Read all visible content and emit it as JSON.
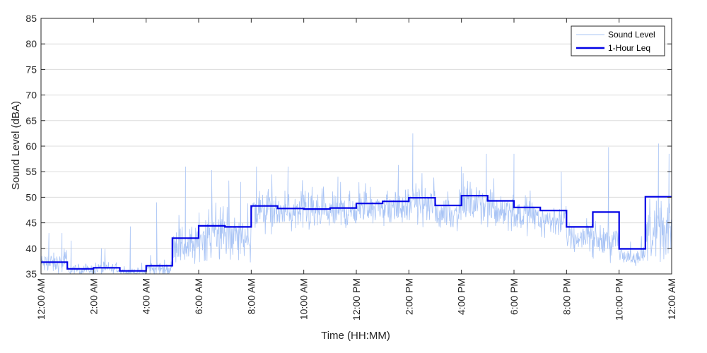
{
  "chart_data": {
    "type": "line",
    "title": "",
    "xlabel": "Time (HH:MM)",
    "ylabel": "Sound Level (dBA)",
    "ylim": [
      35,
      85
    ],
    "yticks": [
      35,
      40,
      45,
      50,
      55,
      60,
      65,
      70,
      75,
      80,
      85
    ],
    "xlim_hours": [
      0,
      24
    ],
    "xticks": [
      {
        "hour": 0,
        "label": "12:00 AM"
      },
      {
        "hour": 2,
        "label": "2:00 AM"
      },
      {
        "hour": 4,
        "label": "4:00 AM"
      },
      {
        "hour": 6,
        "label": "6:00 AM"
      },
      {
        "hour": 8,
        "label": "8:00 AM"
      },
      {
        "hour": 10,
        "label": "10:00 AM"
      },
      {
        "hour": 12,
        "label": "12:00 PM"
      },
      {
        "hour": 14,
        "label": "2:00 PM"
      },
      {
        "hour": 16,
        "label": "4:00 PM"
      },
      {
        "hour": 18,
        "label": "6:00 PM"
      },
      {
        "hour": 20,
        "label": "8:00 PM"
      },
      {
        "hour": 22,
        "label": "10:00 PM"
      },
      {
        "hour": 24,
        "label": "12:00 AM"
      }
    ],
    "grid": "horizontal",
    "legend_position": "top-right",
    "colors": {
      "sound_level": "#a9c4f5",
      "leq": "#0000e6"
    },
    "series": [
      {
        "name": "Sound Level",
        "style": "thin-line",
        "hourly_mean": [
          37.0,
          35.8,
          36.0,
          35.3,
          36.0,
          40.5,
          42.5,
          42.0,
          47.0,
          46.8,
          46.8,
          47.2,
          47.8,
          48.0,
          48.5,
          47.0,
          48.5,
          47.5,
          46.5,
          45.5,
          42.0,
          41.5,
          38.5,
          43.0
        ],
        "hourly_spread": [
          1.5,
          0.8,
          1.0,
          0.6,
          1.2,
          3.0,
          3.5,
          3.5,
          3.0,
          2.8,
          2.5,
          2.5,
          2.5,
          2.5,
          2.5,
          2.5,
          2.5,
          2.5,
          2.5,
          2.5,
          2.5,
          2.5,
          1.5,
          4.0
        ],
        "peaks": [
          {
            "hour": 0.3,
            "value": 43.0
          },
          {
            "hour": 0.8,
            "value": 43.0
          },
          {
            "hour": 1.15,
            "value": 41.5
          },
          {
            "hour": 2.3,
            "value": 40.0
          },
          {
            "hour": 3.4,
            "value": 44.3
          },
          {
            "hour": 4.4,
            "value": 49.0
          },
          {
            "hour": 5.5,
            "value": 56.0
          },
          {
            "hour": 6.5,
            "value": 55.3
          },
          {
            "hour": 7.6,
            "value": 53.0
          },
          {
            "hour": 8.2,
            "value": 56.0
          },
          {
            "hour": 9.4,
            "value": 56.0
          },
          {
            "hour": 11.3,
            "value": 54.0
          },
          {
            "hour": 13.6,
            "value": 56.3
          },
          {
            "hour": 14.15,
            "value": 62.5
          },
          {
            "hour": 16.0,
            "value": 56.0
          },
          {
            "hour": 16.95,
            "value": 58.5
          },
          {
            "hour": 18.0,
            "value": 58.5
          },
          {
            "hour": 19.8,
            "value": 55.0
          },
          {
            "hour": 21.6,
            "value": 59.8
          },
          {
            "hour": 23.5,
            "value": 60.5
          },
          {
            "hour": 23.9,
            "value": 58.5
          }
        ]
      },
      {
        "name": "1-Hour Leq",
        "style": "step",
        "x_hours": [
          0,
          1,
          2,
          3,
          4,
          5,
          6,
          7,
          8,
          9,
          10,
          11,
          12,
          13,
          14,
          15,
          16,
          17,
          18,
          19,
          20,
          21,
          22,
          23
        ],
        "values": [
          37.3,
          36.0,
          36.2,
          35.6,
          36.6,
          42.0,
          44.4,
          44.2,
          48.3,
          47.8,
          47.7,
          47.9,
          48.8,
          49.2,
          49.9,
          48.4,
          50.3,
          49.3,
          48.0,
          47.4,
          44.2,
          47.1,
          39.9,
          50.1
        ]
      }
    ]
  }
}
